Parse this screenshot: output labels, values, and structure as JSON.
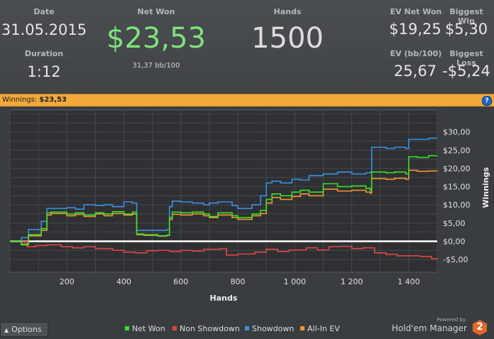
{
  "stats": {
    "date_label": "Date",
    "date_value": "31.05.2015",
    "duration_label": "Duration",
    "duration_value": "1:12",
    "net_won_label": "Net Won",
    "net_won_value": "$23,53",
    "bb_per_100": "31,37 bb/100",
    "hands_label": "Hands",
    "hands_value": "1500",
    "ev_net_won_label": "EV Net Won",
    "ev_net_won_value": "$19,25",
    "biggest_win_label": "Biggest Win",
    "biggest_win_value": "$5,30",
    "ev_bb_label": "EV (bb/100)",
    "ev_bb_value": "25,67",
    "biggest_loss_label": "Biggest Loss",
    "biggest_loss_value": "-$5,24"
  },
  "banner": {
    "label": "Winnings:",
    "value": "$23,53",
    "help": "?"
  },
  "footer": {
    "options_label": "Options",
    "powered_by": "Powered by",
    "brand": "Hold'em Manager",
    "brand_badge": "2"
  },
  "colors": {
    "net_won": "#3be02a",
    "non_showdown": "#e0473f",
    "showdown": "#3d8fe0",
    "allin_ev": "#f0962e",
    "banner": "#f0a93a",
    "net_won_value": "#7fe27a"
  },
  "chart_data": {
    "type": "line",
    "xlabel": "Hands",
    "ylabel": "Winnings",
    "xlim": [
      0,
      1500
    ],
    "ylim": [
      -8.5,
      36
    ],
    "x_ticks": [
      200,
      400,
      600,
      800,
      1000,
      1200,
      1400
    ],
    "x_tick_labels": [
      "200",
      "400",
      "600",
      "800",
      "1 000",
      "1 200",
      "1 400"
    ],
    "y_ticks": [
      -5,
      0,
      5,
      10,
      15,
      20,
      25,
      30
    ],
    "y_tick_labels": [
      "-$5,00",
      "$0,00",
      "$5,00",
      "$10,00",
      "$15,00",
      "$20,00",
      "$25,00",
      "$30,00"
    ],
    "grid": true,
    "legend_position": "bottom",
    "series": [
      {
        "name": "Net Won",
        "x": [
          0,
          40,
          65,
          110,
          130,
          145,
          200,
          230,
          260,
          300,
          330,
          360,
          400,
          430,
          445,
          470,
          520,
          550,
          560,
          570,
          600,
          640,
          680,
          700,
          730,
          780,
          800,
          850,
          880,
          900,
          920,
          950,
          990,
          1020,
          1050,
          1100,
          1150,
          1200,
          1250,
          1265,
          1270,
          1320,
          1350,
          1390,
          1400,
          1430,
          1470,
          1500
        ],
        "y": [
          0,
          -1,
          1.8,
          3.5,
          7.8,
          8.0,
          7.5,
          7.8,
          7.2,
          7.8,
          7.5,
          8.1,
          7.5,
          8.0,
          2.0,
          1.8,
          1.5,
          1.7,
          6.5,
          8.0,
          7.8,
          8.0,
          7.5,
          6.8,
          7.8,
          7.0,
          6.5,
          7.5,
          8.5,
          11.5,
          13.0,
          12.5,
          13.5,
          14.0,
          13.5,
          15.8,
          15.0,
          15.2,
          14.5,
          14.0,
          19.0,
          18.8,
          19.0,
          18.5,
          23.2,
          23.0,
          23.5,
          23.5
        ]
      },
      {
        "name": "Non Showdown",
        "x": [
          0,
          60,
          90,
          130,
          180,
          220,
          260,
          300,
          360,
          400,
          440,
          480,
          520,
          560,
          600,
          640,
          680,
          740,
          760,
          800,
          860,
          900,
          940,
          980,
          1040,
          1080,
          1120,
          1160,
          1200,
          1240,
          1280,
          1320,
          1360,
          1400,
          1440,
          1480,
          1500
        ],
        "y": [
          0,
          -1.5,
          -1.2,
          -1.0,
          -1.5,
          -1.8,
          -1.5,
          -2.0,
          -2.5,
          -3.0,
          -3.2,
          -2.6,
          -2.5,
          -2.8,
          -2.5,
          -2.7,
          -2.2,
          -2.0,
          -3.8,
          -3.5,
          -3.0,
          -2.2,
          -2.8,
          -2.4,
          -1.8,
          -2.4,
          -1.5,
          -1.4,
          -2.0,
          -1.8,
          -3.2,
          -3.6,
          -4.0,
          -4.0,
          -4.2,
          -4.8,
          -4.6
        ]
      },
      {
        "name": "Showdown",
        "x": [
          0,
          40,
          65,
          110,
          130,
          145,
          200,
          230,
          260,
          300,
          330,
          360,
          400,
          430,
          445,
          470,
          520,
          550,
          560,
          570,
          600,
          640,
          680,
          700,
          730,
          780,
          800,
          850,
          880,
          900,
          920,
          950,
          990,
          1020,
          1050,
          1100,
          1150,
          1200,
          1250,
          1265,
          1270,
          1320,
          1350,
          1390,
          1400,
          1430,
          1470,
          1500
        ],
        "y": [
          0,
          1.0,
          3.2,
          5.5,
          9.0,
          9.0,
          9.2,
          8.8,
          10.0,
          9.8,
          10.0,
          9.5,
          10.8,
          10.5,
          3.0,
          3.0,
          3.0,
          3.2,
          9.5,
          11.0,
          10.8,
          10.5,
          10.0,
          10.5,
          10.8,
          9.8,
          9.0,
          10.0,
          12.5,
          16.0,
          16.5,
          16.0,
          17.0,
          16.8,
          18.0,
          18.5,
          19.0,
          18.5,
          18.8,
          19.0,
          25.8,
          25.5,
          25.8,
          25.5,
          28.0,
          28.0,
          28.3,
          28.3
        ]
      },
      {
        "name": "All-In EV",
        "x": [
          0,
          40,
          65,
          110,
          130,
          145,
          200,
          230,
          260,
          300,
          330,
          360,
          400,
          430,
          445,
          470,
          520,
          550,
          560,
          570,
          600,
          640,
          680,
          700,
          730,
          780,
          800,
          850,
          880,
          900,
          920,
          950,
          990,
          1020,
          1050,
          1100,
          1150,
          1200,
          1250,
          1265,
          1270,
          1320,
          1350,
          1390,
          1400,
          1430,
          1470,
          1500
        ],
        "y": [
          0,
          -0.8,
          1.5,
          3.0,
          7.2,
          7.6,
          7.0,
          7.4,
          6.8,
          7.5,
          7.0,
          7.6,
          7.2,
          7.5,
          1.8,
          1.6,
          1.4,
          1.6,
          6.0,
          7.4,
          7.2,
          7.5,
          7.0,
          6.5,
          7.2,
          6.5,
          6.0,
          7.0,
          7.6,
          10.5,
          12.0,
          11.5,
          12.3,
          13.0,
          12.5,
          14.3,
          13.8,
          14.0,
          13.5,
          13.2,
          17.2,
          17.0,
          17.3,
          17.0,
          19.5,
          19.2,
          19.3,
          19.2
        ]
      }
    ]
  }
}
